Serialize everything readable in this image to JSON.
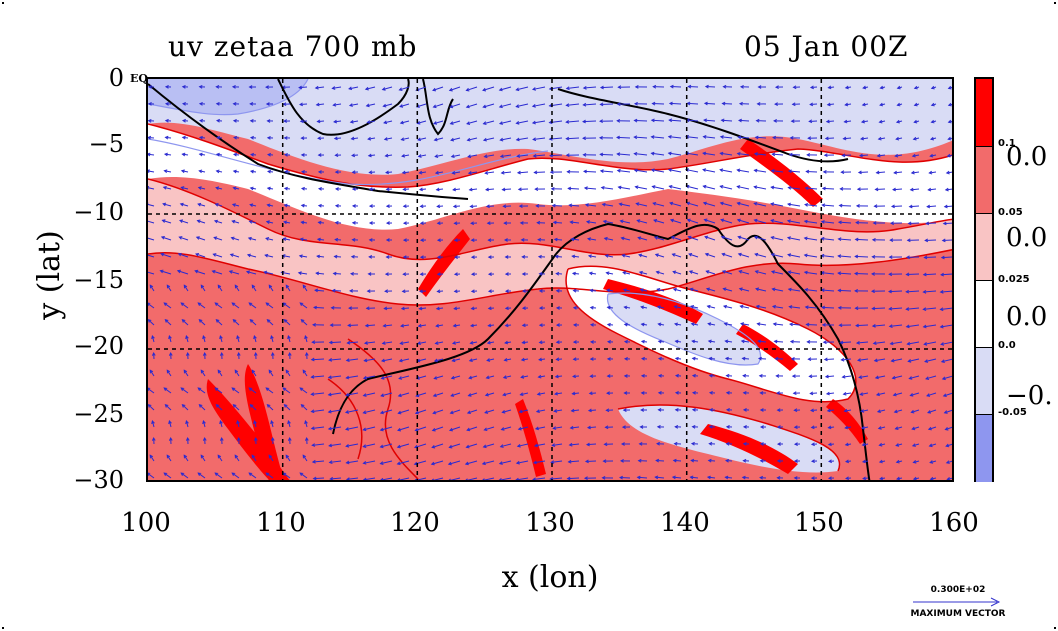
{
  "title_left": "uv zetaa 700 mb",
  "title_right": "05 Jan 00Z",
  "axes": {
    "xlabel": "x (lon)",
    "ylabel": "y (lat)",
    "xticks": [
      "100",
      "110",
      "120",
      "130",
      "140",
      "150",
      "160"
    ],
    "yticks": [
      "0",
      "−5",
      "−10",
      "−15",
      "−20",
      "−25",
      "−30"
    ],
    "eq_label": "EQ"
  },
  "colorbar": {
    "small_labels": [
      "0.1",
      "0.05",
      "0.025",
      "0.0",
      "-0.05"
    ],
    "big_labels": [
      "0.0",
      "0.0",
      "0.0",
      "−0."
    ],
    "colors": [
      "#ff0000",
      "#f26b6b",
      "#f9c4c4",
      "#ffffff",
      "#d9dcf5",
      "#8e96ef"
    ]
  },
  "vector_legend": {
    "magnitude": "0.300E+02",
    "label": "MAXIMUM VECTOR",
    "arrow_color": "#3333cc"
  },
  "map": {
    "lon_range": [
      100,
      160
    ],
    "lat_range": [
      -30,
      0
    ],
    "grid_lons": [
      110,
      120,
      130,
      140,
      150
    ],
    "grid_lats": [
      -10,
      -20
    ],
    "grid_style": "dashed",
    "coastline_color": "#000000",
    "contour_color": "#e00000",
    "wind_vector_color": "#2a2ad0"
  }
}
